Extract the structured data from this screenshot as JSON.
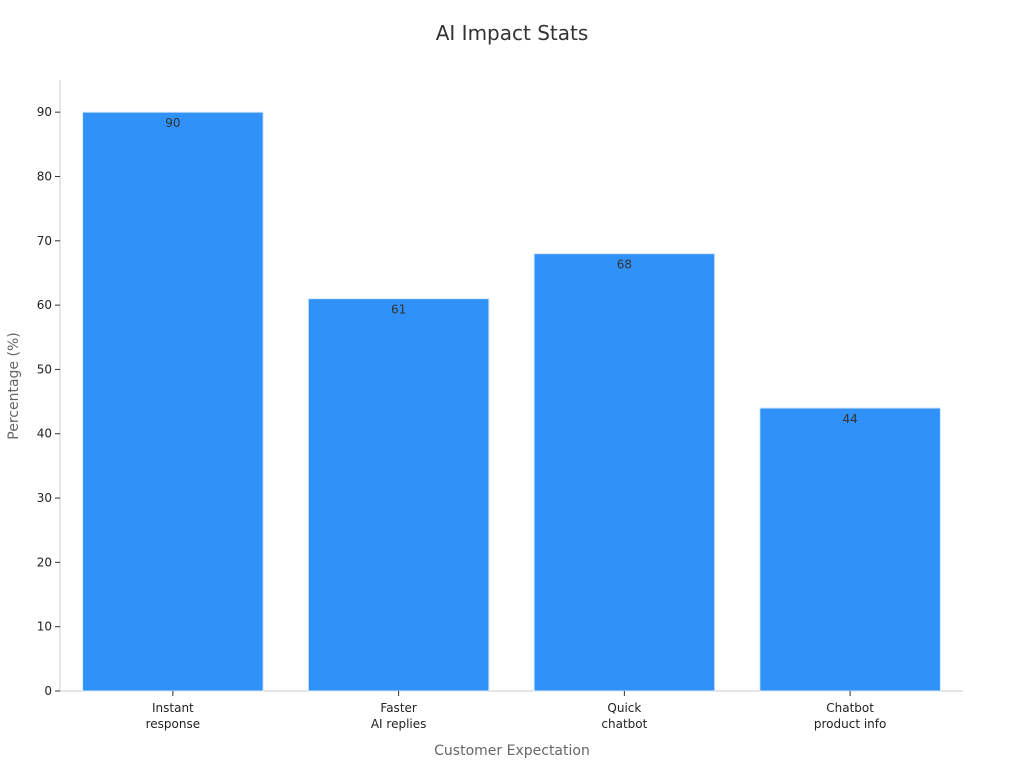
{
  "chart_data": {
    "type": "bar",
    "title": "AI Impact Stats",
    "xlabel": "Customer Expectation",
    "ylabel": "Percentage (%)",
    "categories": [
      [
        "Instant",
        "response"
      ],
      [
        "Faster",
        "AI replies"
      ],
      [
        "Quick",
        "chatbot"
      ],
      [
        "Chatbot",
        "product info"
      ]
    ],
    "values": [
      90,
      61,
      68,
      44
    ],
    "ylim": [
      0,
      95
    ],
    "yticks": [
      0,
      10,
      20,
      30,
      40,
      50,
      60,
      70,
      80,
      90
    ],
    "grid": false,
    "legend": "none",
    "bar_color": "#3091F8",
    "bar_edge_color": "#D6E8FD"
  }
}
